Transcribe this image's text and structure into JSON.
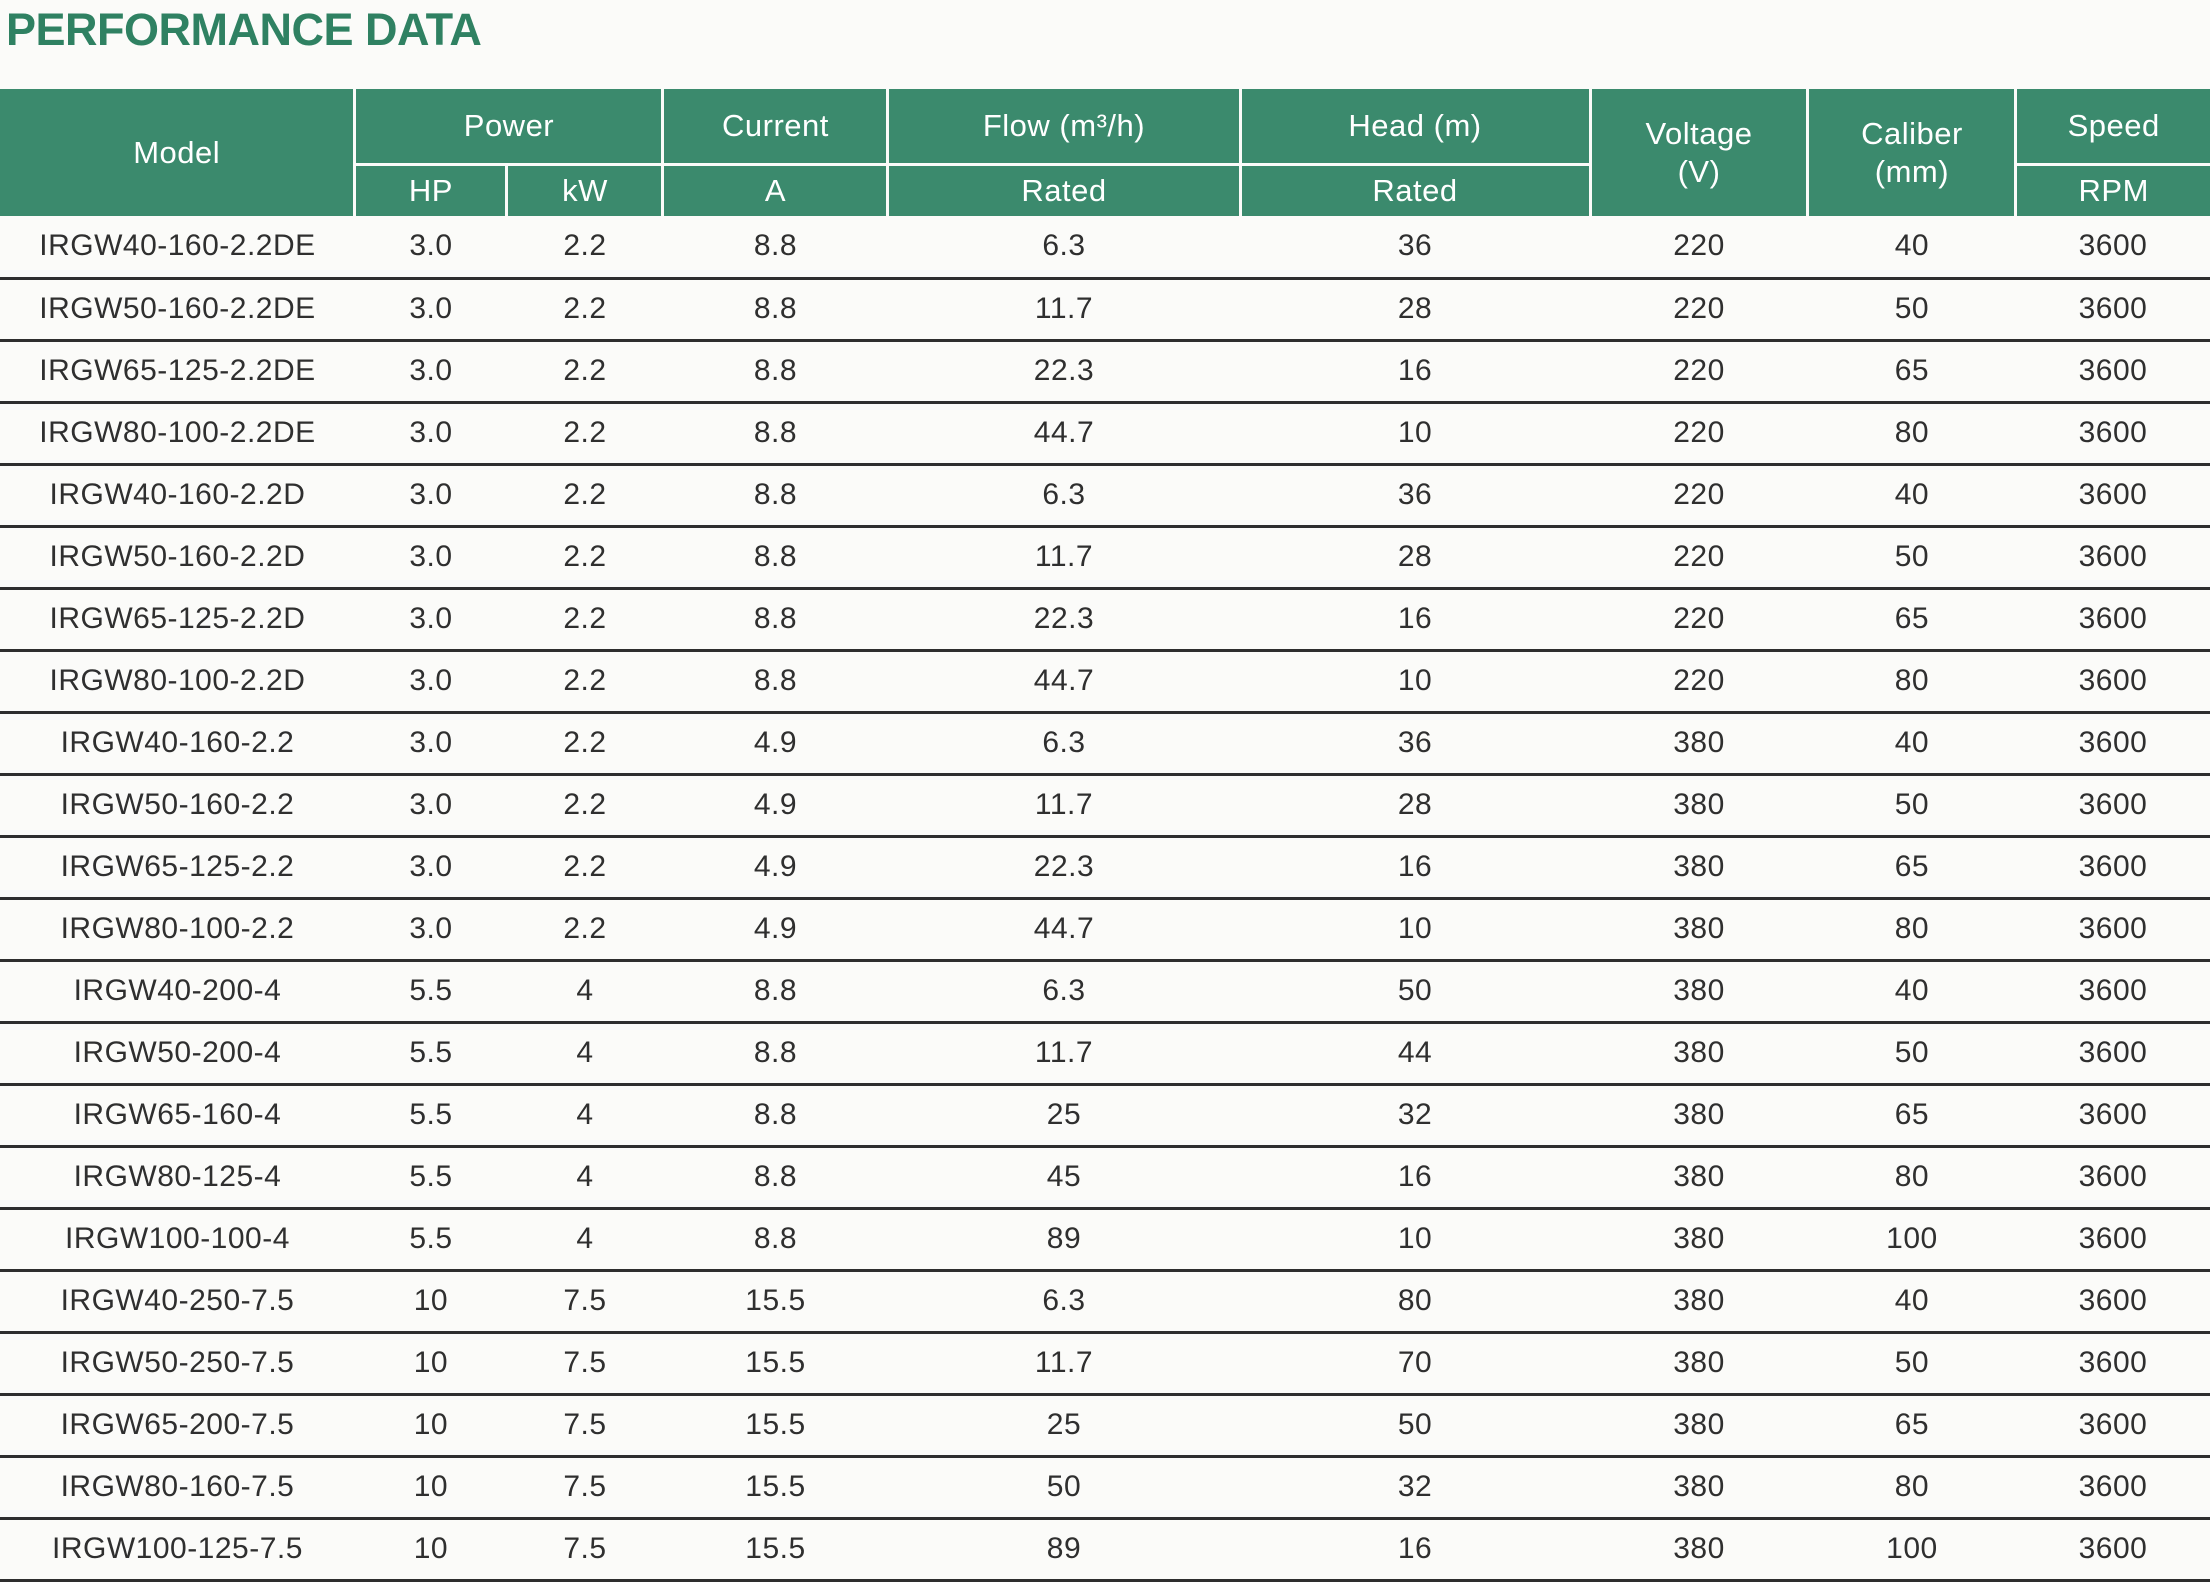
{
  "title": "PERFORMANCE DATA",
  "colors": {
    "title_green": "#2f8162",
    "header_bg_green": "#3b8a6d",
    "header_text": "#ffffff",
    "body_text": "#2f2f2f",
    "row_divider": "#2e2e2e",
    "page_bg": "#fbfbf9"
  },
  "table": {
    "header": {
      "model": "Model",
      "power": "Power",
      "power_hp": "HP",
      "power_kw": "kW",
      "current": "Current",
      "current_a": "A",
      "flow": "Flow (m³/h)",
      "flow_sub": "Rated",
      "head": "Head (m)",
      "head_sub": "Rated",
      "voltage_line1": "Voltage",
      "voltage_line2": "(V)",
      "caliber_line1": "Caliber",
      "caliber_line2": "(mm)",
      "speed": "Speed",
      "speed_sub": "RPM"
    },
    "rows": [
      [
        "IRGW40-160-2.2DE",
        "3.0",
        "2.2",
        "8.8",
        "6.3",
        "36",
        "220",
        "40",
        "3600"
      ],
      [
        "IRGW50-160-2.2DE",
        "3.0",
        "2.2",
        "8.8",
        "11.7",
        "28",
        "220",
        "50",
        "3600"
      ],
      [
        "IRGW65-125-2.2DE",
        "3.0",
        "2.2",
        "8.8",
        "22.3",
        "16",
        "220",
        "65",
        "3600"
      ],
      [
        "IRGW80-100-2.2DE",
        "3.0",
        "2.2",
        "8.8",
        "44.7",
        "10",
        "220",
        "80",
        "3600"
      ],
      [
        "IRGW40-160-2.2D",
        "3.0",
        "2.2",
        "8.8",
        "6.3",
        "36",
        "220",
        "40",
        "3600"
      ],
      [
        "IRGW50-160-2.2D",
        "3.0",
        "2.2",
        "8.8",
        "11.7",
        "28",
        "220",
        "50",
        "3600"
      ],
      [
        "IRGW65-125-2.2D",
        "3.0",
        "2.2",
        "8.8",
        "22.3",
        "16",
        "220",
        "65",
        "3600"
      ],
      [
        "IRGW80-100-2.2D",
        "3.0",
        "2.2",
        "8.8",
        "44.7",
        "10",
        "220",
        "80",
        "3600"
      ],
      [
        "IRGW40-160-2.2",
        "3.0",
        "2.2",
        "4.9",
        "6.3",
        "36",
        "380",
        "40",
        "3600"
      ],
      [
        "IRGW50-160-2.2",
        "3.0",
        "2.2",
        "4.9",
        "11.7",
        "28",
        "380",
        "50",
        "3600"
      ],
      [
        "IRGW65-125-2.2",
        "3.0",
        "2.2",
        "4.9",
        "22.3",
        "16",
        "380",
        "65",
        "3600"
      ],
      [
        "IRGW80-100-2.2",
        "3.0",
        "2.2",
        "4.9",
        "44.7",
        "10",
        "380",
        "80",
        "3600"
      ],
      [
        "IRGW40-200-4",
        "5.5",
        "4",
        "8.8",
        "6.3",
        "50",
        "380",
        "40",
        "3600"
      ],
      [
        "IRGW50-200-4",
        "5.5",
        "4",
        "8.8",
        "11.7",
        "44",
        "380",
        "50",
        "3600"
      ],
      [
        "IRGW65-160-4",
        "5.5",
        "4",
        "8.8",
        "25",
        "32",
        "380",
        "65",
        "3600"
      ],
      [
        "IRGW80-125-4",
        "5.5",
        "4",
        "8.8",
        "45",
        "16",
        "380",
        "80",
        "3600"
      ],
      [
        "IRGW100-100-4",
        "5.5",
        "4",
        "8.8",
        "89",
        "10",
        "380",
        "100",
        "3600"
      ],
      [
        "IRGW40-250-7.5",
        "10",
        "7.5",
        "15.5",
        "6.3",
        "80",
        "380",
        "40",
        "3600"
      ],
      [
        "IRGW50-250-7.5",
        "10",
        "7.5",
        "15.5",
        "11.7",
        "70",
        "380",
        "50",
        "3600"
      ],
      [
        "IRGW65-200-7.5",
        "10",
        "7.5",
        "15.5",
        "25",
        "50",
        "380",
        "65",
        "3600"
      ],
      [
        "IRGW80-160-7.5",
        "10",
        "7.5",
        "15.5",
        "50",
        "32",
        "380",
        "80",
        "3600"
      ],
      [
        "IRGW100-125-7.5",
        "10",
        "7.5",
        "15.5",
        "89",
        "16",
        "380",
        "100",
        "3600"
      ]
    ]
  }
}
